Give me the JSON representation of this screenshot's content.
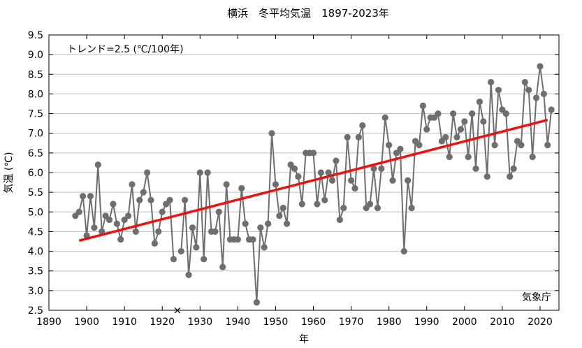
{
  "chart_data": {
    "type": "line",
    "title": "横浜　冬平均気温　1897-2023年",
    "xlabel": "年",
    "ylabel": "気温 (℃)",
    "xlim": [
      1890,
      2025
    ],
    "ylim": [
      2.5,
      9.5
    ],
    "x_ticks": [
      1890,
      1900,
      1910,
      1920,
      1930,
      1940,
      1950,
      1960,
      1970,
      1980,
      1990,
      2000,
      2010,
      2020
    ],
    "y_ticks": [
      "2.5",
      "3.0",
      "3.5",
      "4.0",
      "4.5",
      "5.0",
      "5.5",
      "6.0",
      "6.5",
      "7.0",
      "7.5",
      "8.0",
      "8.5",
      "9.0",
      "9.5"
    ],
    "annotations": {
      "trend": "トレンド=2.5 (℃/100年)",
      "source": "気象庁"
    },
    "series": [
      {
        "values": [
          [
            1897,
            4.9
          ],
          [
            1898,
            5.0
          ],
          [
            1899,
            5.4
          ],
          [
            1900,
            4.4
          ],
          [
            1901,
            5.4
          ],
          [
            1902,
            4.6
          ],
          [
            1903,
            6.2
          ],
          [
            1904,
            4.5
          ],
          [
            1905,
            4.9
          ],
          [
            1906,
            4.8
          ],
          [
            1907,
            5.2
          ],
          [
            1908,
            4.7
          ],
          [
            1909,
            4.3
          ],
          [
            1910,
            4.8
          ],
          [
            1911,
            4.9
          ],
          [
            1912,
            5.7
          ],
          [
            1913,
            4.5
          ],
          [
            1914,
            5.3
          ],
          [
            1915,
            5.5
          ],
          [
            1916,
            6.0
          ],
          [
            1917,
            5.3
          ],
          [
            1918,
            4.2
          ],
          [
            1919,
            4.5
          ],
          [
            1920,
            5.0
          ],
          [
            1921,
            5.2
          ],
          [
            1922,
            5.3
          ],
          [
            1923,
            3.8
          ],
          [
            1925,
            4.0
          ],
          [
            1926,
            5.3
          ],
          [
            1927,
            3.4
          ],
          [
            1928,
            4.6
          ],
          [
            1929,
            4.1
          ],
          [
            1930,
            6.0
          ],
          [
            1931,
            3.8
          ],
          [
            1932,
            6.0
          ],
          [
            1933,
            4.5
          ],
          [
            1934,
            4.5
          ],
          [
            1935,
            5.0
          ],
          [
            1936,
            3.6
          ],
          [
            1937,
            5.7
          ],
          [
            1938,
            4.3
          ],
          [
            1939,
            4.3
          ],
          [
            1940,
            4.3
          ],
          [
            1941,
            5.6
          ],
          [
            1942,
            4.7
          ],
          [
            1943,
            4.3
          ],
          [
            1944,
            4.3
          ],
          [
            1945,
            2.7
          ],
          [
            1946,
            4.6
          ],
          [
            1947,
            4.1
          ],
          [
            1948,
            4.7
          ],
          [
            1949,
            7.0
          ],
          [
            1950,
            5.7
          ],
          [
            1951,
            4.9
          ],
          [
            1952,
            5.1
          ],
          [
            1953,
            4.7
          ],
          [
            1954,
            6.2
          ],
          [
            1955,
            6.1
          ],
          [
            1956,
            5.9
          ],
          [
            1957,
            5.2
          ],
          [
            1958,
            6.5
          ],
          [
            1959,
            6.5
          ],
          [
            1960,
            6.5
          ],
          [
            1961,
            5.2
          ],
          [
            1962,
            6.0
          ],
          [
            1963,
            5.3
          ],
          [
            1964,
            6.0
          ],
          [
            1965,
            5.8
          ],
          [
            1966,
            6.3
          ],
          [
            1967,
            4.8
          ],
          [
            1968,
            5.1
          ],
          [
            1969,
            6.9
          ],
          [
            1970,
            5.8
          ],
          [
            1971,
            5.6
          ],
          [
            1972,
            6.9
          ],
          [
            1973,
            7.2
          ],
          [
            1974,
            5.1
          ],
          [
            1975,
            5.2
          ],
          [
            1976,
            6.1
          ],
          [
            1977,
            5.1
          ],
          [
            1978,
            6.1
          ],
          [
            1979,
            7.4
          ],
          [
            1980,
            6.7
          ],
          [
            1981,
            5.8
          ],
          [
            1982,
            6.5
          ],
          [
            1983,
            6.6
          ],
          [
            1984,
            4.0
          ],
          [
            1985,
            5.8
          ],
          [
            1986,
            5.1
          ],
          [
            1987,
            6.8
          ],
          [
            1988,
            6.7
          ],
          [
            1989,
            7.7
          ],
          [
            1990,
            7.1
          ],
          [
            1991,
            7.4
          ],
          [
            1992,
            7.4
          ],
          [
            1993,
            7.5
          ],
          [
            1994,
            6.8
          ],
          [
            1995,
            6.9
          ],
          [
            1996,
            6.4
          ],
          [
            1997,
            7.5
          ],
          [
            1998,
            6.9
          ],
          [
            1999,
            7.1
          ],
          [
            2000,
            7.3
          ],
          [
            2001,
            6.4
          ],
          [
            2002,
            7.5
          ],
          [
            2003,
            6.1
          ],
          [
            2004,
            7.8
          ],
          [
            2005,
            7.3
          ],
          [
            2006,
            5.9
          ],
          [
            2007,
            8.3
          ],
          [
            2008,
            6.7
          ],
          [
            2009,
            8.1
          ],
          [
            2010,
            7.6
          ],
          [
            2011,
            7.5
          ],
          [
            2012,
            5.9
          ],
          [
            2013,
            6.1
          ],
          [
            2014,
            6.8
          ],
          [
            2015,
            6.7
          ],
          [
            2016,
            8.3
          ],
          [
            2017,
            8.1
          ],
          [
            2018,
            6.4
          ],
          [
            2019,
            7.9
          ],
          [
            2020,
            8.7
          ],
          [
            2021,
            8.0
          ],
          [
            2022,
            6.7
          ],
          [
            2023,
            7.6
          ]
        ],
        "color": "#6e6e6e"
      }
    ],
    "missing_marker": {
      "x": 1924,
      "y": 2.5,
      "symbol": "×"
    },
    "trend_line": {
      "start": [
        1898,
        4.27
      ],
      "end": [
        2022,
        7.34
      ],
      "color": "#ee1111"
    }
  }
}
